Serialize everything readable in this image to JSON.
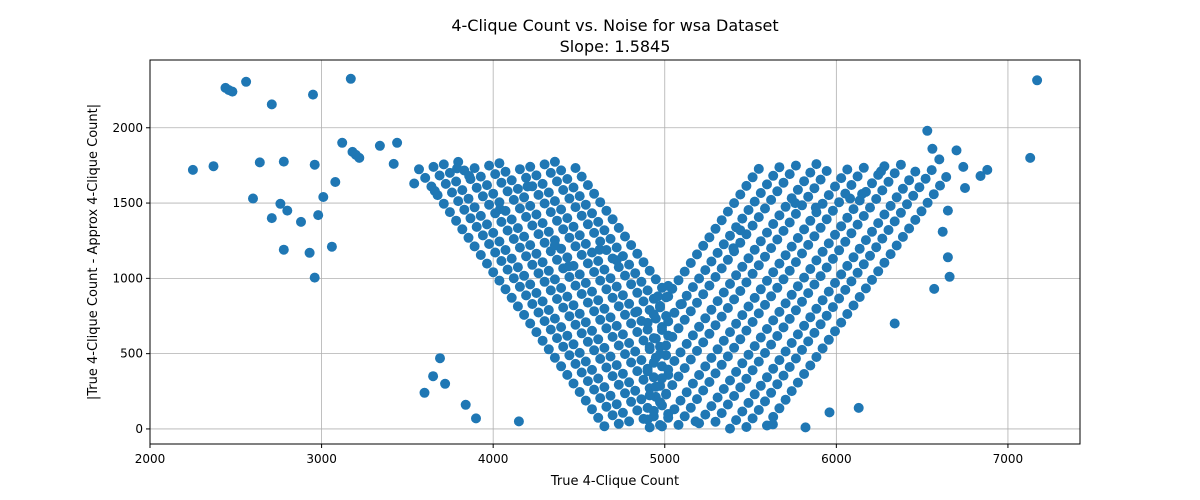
{
  "chart_data": {
    "type": "scatter",
    "title": "4-Clique Count vs. Noise for wsa Dataset",
    "subtitle": "Slope: 1.5845",
    "xlabel": "True 4-Clique Count",
    "ylabel": "|True 4-Clique Count - Approx 4-Clique Count|",
    "xlim": [
      2000,
      7420
    ],
    "ylim": [
      -100,
      2450
    ],
    "xticks": [
      2000,
      3000,
      4000,
      5000,
      6000,
      7000
    ],
    "yticks": [
      0,
      500,
      1000,
      1500,
      2000
    ],
    "grid": true,
    "marker_color": "#1f77b4",
    "outliers": [
      [
        2250,
        1720
      ],
      [
        2370,
        1745
      ],
      [
        2440,
        2265
      ],
      [
        2460,
        2250
      ],
      [
        2480,
        2240
      ],
      [
        2560,
        2305
      ],
      [
        2600,
        1530
      ],
      [
        2640,
        1770
      ],
      [
        2710,
        2155
      ],
      [
        2710,
        1400
      ],
      [
        2760,
        1495
      ],
      [
        2780,
        1190
      ],
      [
        2780,
        1775
      ],
      [
        2800,
        1450
      ],
      [
        2880,
        1375
      ],
      [
        2930,
        1170
      ],
      [
        2950,
        2220
      ],
      [
        2960,
        1755
      ],
      [
        2960,
        1005
      ],
      [
        2980,
        1420
      ],
      [
        3010,
        1540
      ],
      [
        3060,
        1210
      ],
      [
        3080,
        1640
      ],
      [
        3120,
        1900
      ],
      [
        3170,
        2325
      ],
      [
        3180,
        1840
      ],
      [
        3200,
        1820
      ],
      [
        3220,
        1800
      ],
      [
        3340,
        1880
      ],
      [
        3420,
        1760
      ],
      [
        3440,
        1900
      ],
      [
        3540,
        1630
      ],
      [
        3600,
        240
      ],
      [
        3660,
        1580
      ],
      [
        3790,
        1730
      ],
      [
        3860,
        1680
      ],
      [
        4040,
        1460
      ],
      [
        4200,
        1610
      ],
      [
        4360,
        1220
      ],
      [
        4440,
        1080
      ],
      [
        4620,
        1190
      ],
      [
        4720,
        1120
      ],
      [
        4840,
        780
      ],
      [
        4960,
        880
      ],
      [
        5020,
        950
      ],
      [
        5100,
        830
      ],
      [
        5400,
        1200
      ],
      [
        5440,
        1320
      ],
      [
        5760,
        1500
      ],
      [
        5880,
        1470
      ],
      [
        6080,
        1530
      ],
      [
        6150,
        1560
      ],
      [
        6260,
        1710
      ],
      [
        6530,
        1980
      ],
      [
        6560,
        1860
      ],
      [
        6600,
        1790
      ],
      [
        6700,
        1850
      ],
      [
        6740,
        1740
      ],
      [
        6750,
        1600
      ],
      [
        6840,
        1680
      ],
      [
        6880,
        1720
      ],
      [
        7130,
        1800
      ],
      [
        7170,
        2315
      ],
      [
        6650,
        1450
      ],
      [
        6620,
        1310
      ],
      [
        6650,
        1140
      ],
      [
        6660,
        1010
      ],
      [
        6570,
        930
      ],
      [
        6340,
        700
      ],
      [
        6130,
        140
      ],
      [
        5960,
        110
      ],
      [
        5820,
        10
      ],
      [
        5630,
        30
      ],
      [
        5180,
        50
      ],
      [
        4150,
        50
      ],
      [
        3900,
        70
      ],
      [
        3840,
        160
      ],
      [
        3690,
        470
      ],
      [
        3720,
        300
      ],
      [
        3650,
        350
      ]
    ]
  }
}
